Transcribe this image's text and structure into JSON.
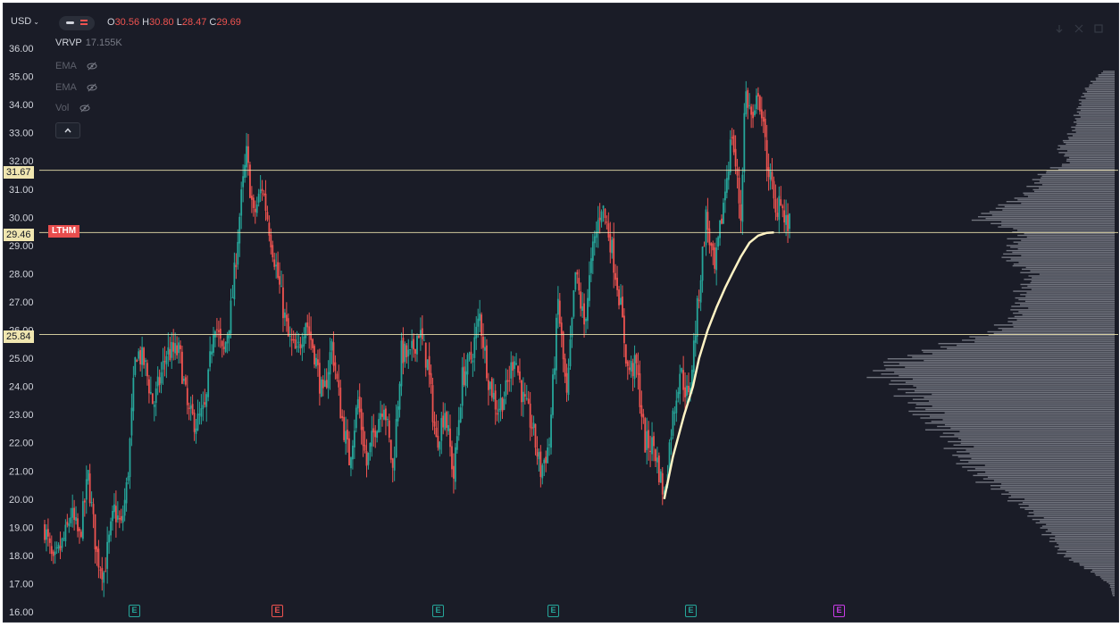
{
  "header": {
    "currency_label": "USD",
    "ohlc": {
      "o_label": "O",
      "o_value": "30.56",
      "h_label": "H",
      "h_value": "30.80",
      "l_label": "L",
      "l_value": "28.47",
      "c_label": "C",
      "c_value": "29.69"
    }
  },
  "indicators": [
    {
      "name": "VRVP",
      "value": "17.155K",
      "visible": true
    },
    {
      "name": "EMA",
      "visible": false
    },
    {
      "name": "EMA",
      "visible": false
    },
    {
      "name": "Vol",
      "visible": false
    }
  ],
  "collapse_icon": "chevron-up-icon",
  "symbol": "LTHM",
  "price_lines": [
    {
      "label": "31.67",
      "value": 31.67,
      "color": "#f0e6b0"
    },
    {
      "label": "29.46",
      "value": 29.46,
      "color": "#f0e6b0"
    },
    {
      "label": "25.84",
      "value": 25.84,
      "color": "#f0e6b0"
    }
  ],
  "earnings_markers": [
    {
      "label": "E",
      "color": "#26a69a"
    },
    {
      "label": "E",
      "color": "#ef5350"
    },
    {
      "label": "E",
      "color": "#26a69a"
    },
    {
      "label": "E",
      "color": "#26a69a"
    },
    {
      "label": "E",
      "color": "#26a69a"
    },
    {
      "label": "E",
      "color": "#c83ce6"
    }
  ],
  "colors": {
    "background": "#1a1c27",
    "up": "#26a69a",
    "down": "#ef5350",
    "avwap": "#fff3c4",
    "volume_profile": "#8f929c",
    "price_line": "#f0e6b0"
  },
  "chart_data": {
    "type": "candlestick",
    "ylim": [
      16,
      36.5
    ],
    "y_ticks": [
      "36.00",
      "35.00",
      "34.00",
      "33.00",
      "32.00",
      "31.00",
      "30.00",
      "29.00",
      "28.00",
      "27.00",
      "26.00",
      "25.00",
      "24.00",
      "23.00",
      "22.00",
      "21.00",
      "20.00",
      "19.00",
      "18.00",
      "17.00",
      "16.00"
    ],
    "x_count": 430,
    "price_path": [
      [
        0,
        19.0
      ],
      [
        10,
        17.6
      ],
      [
        25,
        18.8
      ],
      [
        30,
        19.5
      ],
      [
        40,
        18.6
      ],
      [
        50,
        20.8
      ],
      [
        60,
        18.0
      ],
      [
        68,
        17.4
      ],
      [
        80,
        19.6
      ],
      [
        88,
        19.0
      ],
      [
        95,
        20.6
      ],
      [
        105,
        25.3
      ],
      [
        115,
        24.8
      ],
      [
        125,
        23.3
      ],
      [
        140,
        25.2
      ],
      [
        155,
        25.2
      ],
      [
        165,
        23.0
      ],
      [
        175,
        22.7
      ],
      [
        185,
        23.2
      ],
      [
        195,
        26.5
      ],
      [
        205,
        25.0
      ],
      [
        215,
        26.9
      ],
      [
        225,
        30.4
      ],
      [
        232,
        32.2
      ],
      [
        240,
        30.0
      ],
      [
        250,
        31.1
      ],
      [
        260,
        29.3
      ],
      [
        270,
        27.5
      ],
      [
        280,
        25.7
      ],
      [
        290,
        25.1
      ],
      [
        300,
        26.4
      ],
      [
        310,
        25.2
      ],
      [
        320,
        23.5
      ],
      [
        330,
        25.5
      ],
      [
        340,
        23.2
      ],
      [
        350,
        21.4
      ],
      [
        360,
        23.5
      ],
      [
        370,
        21.2
      ],
      [
        380,
        22.6
      ],
      [
        390,
        23.5
      ],
      [
        400,
        21.0
      ],
      [
        410,
        25.2
      ],
      [
        420,
        25.0
      ],
      [
        430,
        26.0
      ],
      [
        440,
        24.8
      ],
      [
        450,
        22.0
      ],
      [
        460,
        23.2
      ],
      [
        470,
        20.8
      ],
      [
        480,
        24.3
      ],
      [
        490,
        25.0
      ],
      [
        500,
        26.5
      ],
      [
        510,
        24.3
      ],
      [
        520,
        23.2
      ],
      [
        530,
        23.8
      ],
      [
        540,
        25.2
      ],
      [
        550,
        23.5
      ],
      [
        560,
        22.6
      ],
      [
        570,
        21.0
      ],
      [
        580,
        22.0
      ],
      [
        590,
        27.0
      ],
      [
        600,
        23.5
      ],
      [
        610,
        28.0
      ],
      [
        620,
        26.2
      ],
      [
        630,
        28.8
      ],
      [
        640,
        30.5
      ],
      [
        650,
        29.2
      ],
      [
        660,
        27.3
      ],
      [
        670,
        24.6
      ],
      [
        680,
        24.7
      ],
      [
        690,
        22.0
      ],
      [
        700,
        21.9
      ],
      [
        712,
        20.1
      ],
      [
        720,
        22.5
      ],
      [
        730,
        24.6
      ],
      [
        740,
        23.5
      ],
      [
        750,
        26.7
      ],
      [
        760,
        30.0
      ],
      [
        770,
        28.0
      ],
      [
        780,
        30.5
      ],
      [
        790,
        33.0
      ],
      [
        800,
        30.0
      ],
      [
        805,
        34.5
      ],
      [
        815,
        33.2
      ],
      [
        820,
        34.6
      ],
      [
        830,
        32.0
      ],
      [
        835,
        31.2
      ],
      [
        840,
        30.0
      ],
      [
        845,
        31.0
      ],
      [
        850,
        29.8
      ],
      [
        856,
        29.69
      ]
    ],
    "volume_profile": [
      [
        35.2,
        0.12
      ],
      [
        34.6,
        0.28
      ],
      [
        34.0,
        0.35
      ],
      [
        33.5,
        0.38
      ],
      [
        33.0,
        0.42
      ],
      [
        32.5,
        0.55
      ],
      [
        32.0,
        0.45
      ],
      [
        31.5,
        0.75
      ],
      [
        31.0,
        0.8
      ],
      [
        30.5,
        1.05
      ],
      [
        30.0,
        1.35
      ],
      [
        29.46,
        0.92
      ],
      [
        29.0,
        1.02
      ],
      [
        28.5,
        1.05
      ],
      [
        28.0,
        0.82
      ],
      [
        27.5,
        0.9
      ],
      [
        27.0,
        0.95
      ],
      [
        26.5,
        0.98
      ],
      [
        26.0,
        1.15
      ],
      [
        25.5,
        1.62
      ],
      [
        25.0,
        2.1
      ],
      [
        24.5,
        2.3
      ],
      [
        24.0,
        2.05
      ],
      [
        23.5,
        1.95
      ],
      [
        23.0,
        1.88
      ],
      [
        22.5,
        1.7
      ],
      [
        22.0,
        1.55
      ],
      [
        21.5,
        1.52
      ],
      [
        21.0,
        1.38
      ],
      [
        20.5,
        1.2
      ],
      [
        20.0,
        0.98
      ],
      [
        19.5,
        0.82
      ],
      [
        19.0,
        0.7
      ],
      [
        18.5,
        0.6
      ],
      [
        18.0,
        0.5
      ],
      [
        17.5,
        0.25
      ],
      [
        17.0,
        0.05
      ],
      [
        16.6,
        0.02
      ]
    ],
    "avwap": [
      [
        712,
        20.0
      ],
      [
        722,
        21.5
      ],
      [
        735,
        23.0
      ],
      [
        745,
        24.0
      ],
      [
        752,
        25.0
      ],
      [
        762,
        26.0
      ],
      [
        772,
        26.8
      ],
      [
        782,
        27.5
      ],
      [
        790,
        28.0
      ],
      [
        800,
        28.6
      ],
      [
        810,
        29.1
      ],
      [
        820,
        29.35
      ],
      [
        830,
        29.45
      ],
      [
        838,
        29.46
      ]
    ],
    "earnings_x": [
      110,
      285,
      465,
      600,
      740,
      905
    ]
  }
}
